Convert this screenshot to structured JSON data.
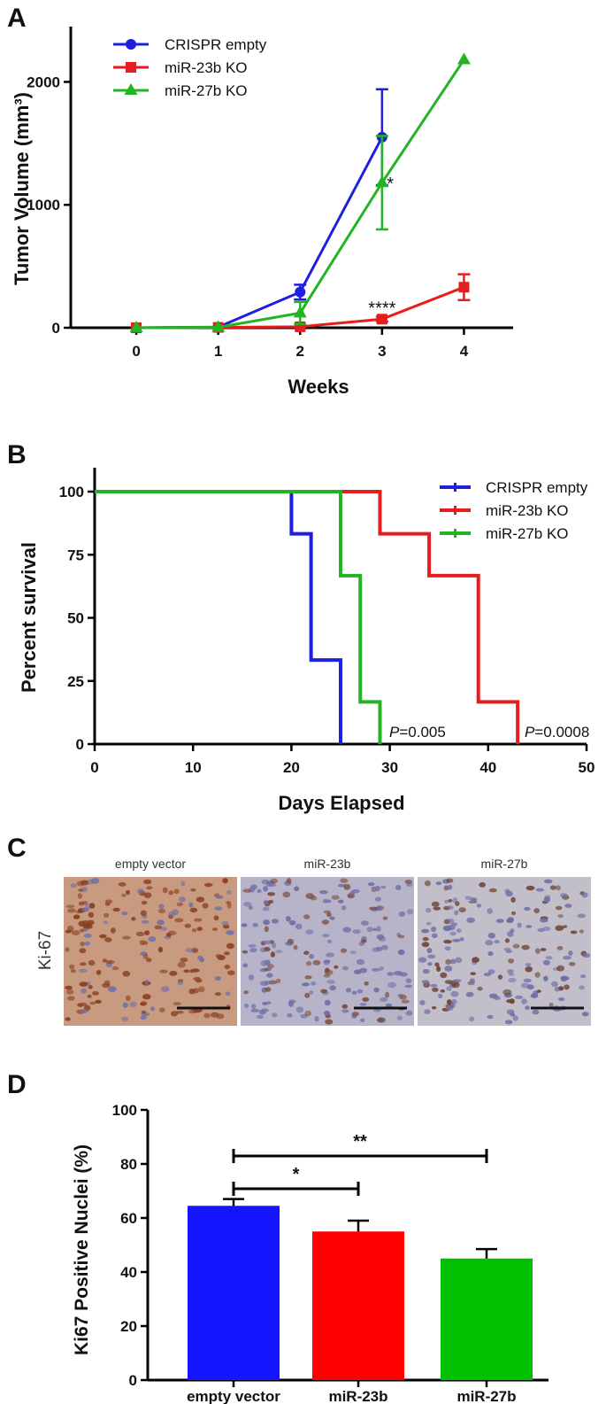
{
  "chart_data": [
    {
      "panel": "A",
      "type": "line",
      "xlabel": "Weeks",
      "ylabel": "Tumor Volume (mm³)",
      "x": [
        0,
        1,
        2,
        3,
        4
      ],
      "xlim": [
        -0.8,
        4.6
      ],
      "ylim": [
        0,
        2450
      ],
      "xticks": [
        "0",
        "1",
        "2",
        "3",
        "4"
      ],
      "yticks": [
        "0",
        "1000",
        "2000"
      ],
      "legend_position": "top-left",
      "series": [
        {
          "name": "CRISPR empty",
          "color": "#1f1fe0",
          "marker": "circle",
          "values": [
            0,
            5,
            290,
            1550,
            null
          ],
          "errors": [
            0,
            0,
            60,
            390,
            null
          ]
        },
        {
          "name": "miR-23b KO",
          "color": "#e81c1c",
          "marker": "square",
          "values": [
            0,
            3,
            8,
            70,
            330
          ],
          "errors": [
            0,
            0,
            0,
            20,
            105
          ]
        },
        {
          "name": "miR-27b KO",
          "color": "#23b423",
          "marker": "triangle",
          "values": [
            0,
            4,
            120,
            1180,
            2180
          ],
          "errors": [
            0,
            0,
            90,
            380,
            0
          ]
        }
      ],
      "annotations": [
        {
          "text": "*",
          "x": 3.1,
          "y": 1180
        },
        {
          "text": "****",
          "x": 3.0,
          "y": 170
        }
      ]
    },
    {
      "panel": "B",
      "type": "line",
      "subtype": "kaplan-meier",
      "xlabel": "Days Elapsed",
      "ylabel": "Percent survival",
      "xlim": [
        0,
        50
      ],
      "ylim": [
        0,
        100
      ],
      "xticks": [
        "0",
        "10",
        "20",
        "30",
        "40",
        "50"
      ],
      "yticks": [
        "0",
        "25",
        "50",
        "75",
        "100"
      ],
      "legend_position": "top-right",
      "series": [
        {
          "name": "CRISPR empty",
          "color": "#1f1fe0",
          "x": [
            0,
            20,
            22,
            25
          ],
          "y": [
            100,
            83.3,
            33.3,
            0
          ]
        },
        {
          "name": "miR-23b KO",
          "color": "#e81c1c",
          "x": [
            0,
            29,
            34,
            39,
            43
          ],
          "y": [
            100,
            83.3,
            66.7,
            16.7,
            0
          ]
        },
        {
          "name": "miR-27b KO",
          "color": "#23b423",
          "x": [
            0,
            25,
            27,
            29
          ],
          "y": [
            100,
            66.7,
            16.7,
            0
          ]
        }
      ],
      "pvalues": [
        {
          "italic": "P",
          "value": "=0.005"
        },
        {
          "italic": "P",
          "value": "=0.0008"
        }
      ]
    },
    {
      "panel": "D",
      "type": "bar",
      "xlabel": "",
      "ylabel": "Ki67  Positive Nuclei (%)",
      "categories": [
        "empty vector",
        "miR-23b",
        "miR-27b"
      ],
      "values": [
        64.5,
        55,
        45
      ],
      "errors": [
        2.5,
        4,
        3.5
      ],
      "colors": [
        "#1414ff",
        "#ff0000",
        "#00c000"
      ],
      "ylim": [
        0,
        100
      ],
      "yticks": [
        "0",
        "20",
        "40",
        "60",
        "80",
        "100"
      ],
      "significance": [
        {
          "from": 0,
          "to": 1,
          "label": "*"
        },
        {
          "from": 0,
          "to": 2,
          "label": "**"
        }
      ]
    }
  ],
  "panel_letters": {
    "a": "A",
    "b": "B",
    "c": "C",
    "d": "D"
  },
  "panel_c": {
    "side_label": "Ki-67",
    "images": [
      {
        "label": "empty vector",
        "base": "#c89a80",
        "nuclei": "#8a4020"
      },
      {
        "label": "miR-23b",
        "base": "#b7b4c9",
        "nuclei": "#7a4a38"
      },
      {
        "label": "miR-27b",
        "base": "#c2bfcb",
        "nuclei": "#6e4636"
      }
    ]
  }
}
